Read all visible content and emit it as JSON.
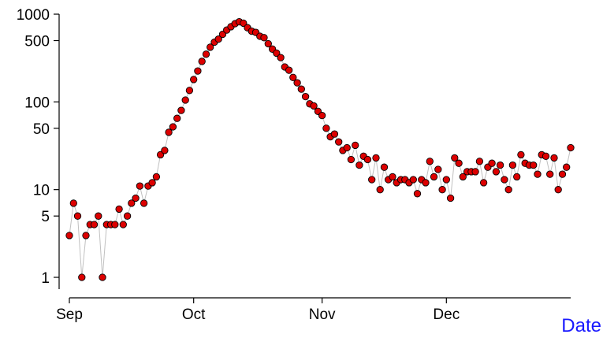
{
  "chart_data": {
    "type": "scatter",
    "connected": true,
    "xlabel": "Date",
    "ylabel": "",
    "y_scale": "log",
    "ylim": [
      1,
      1000
    ],
    "xlim": [
      "2020-09-01",
      "2020-12-31"
    ],
    "y_ticks": [
      1,
      5,
      10,
      50,
      100,
      500,
      1000
    ],
    "y_tick_labels": [
      "1",
      "5",
      "10",
      "50",
      "100",
      "500",
      "1000"
    ],
    "x_ticks": [
      "2020-09-01",
      "2020-10-01",
      "2020-11-01",
      "2020-12-01"
    ],
    "x_tick_labels": [
      "Sep",
      "Oct",
      "Nov",
      "Dec"
    ],
    "grid": false,
    "legend": "none",
    "colors": {
      "marker_fill": "#dd0000",
      "marker_edge": "#000000",
      "line": "#c0c0c0",
      "xlabel": "#1a1aff",
      "axis": "#000000"
    },
    "series": [
      {
        "start": "2020-09-01",
        "values": [
          3,
          7,
          5,
          1,
          3,
          4,
          4,
          5,
          1,
          4,
          4,
          4,
          6,
          4,
          5,
          7,
          8,
          11,
          7,
          11,
          12,
          14,
          25,
          28,
          45,
          52,
          65,
          80,
          105,
          135,
          180,
          225,
          290,
          350,
          420,
          480,
          520,
          590,
          660,
          720,
          780,
          820,
          790,
          700,
          640,
          620,
          560,
          540,
          460,
          400,
          360,
          320,
          250,
          230,
          190,
          165,
          140,
          115,
          95,
          90,
          78,
          70,
          50,
          40,
          43,
          35,
          28,
          30,
          22,
          32,
          19,
          24,
          22,
          13,
          23,
          10,
          18,
          13,
          14,
          12,
          13,
          13,
          12,
          13,
          9,
          13,
          12,
          21,
          14,
          17,
          10,
          13,
          8,
          23,
          20,
          14,
          16,
          16,
          16,
          21,
          12,
          18,
          20,
          16,
          19,
          13,
          10,
          19,
          14,
          25,
          20,
          19,
          19,
          15,
          25,
          24,
          15,
          23,
          10,
          15,
          18,
          30
        ]
      }
    ]
  }
}
